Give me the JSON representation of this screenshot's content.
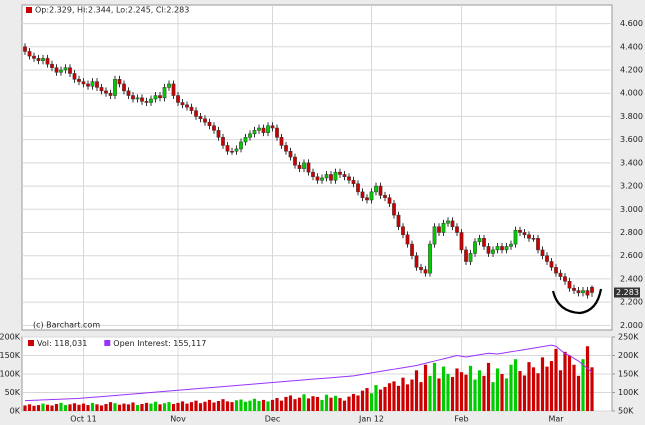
{
  "chart_data": [
    {
      "type": "candlestick",
      "header": "Op:2.329, Hi:2.344, Lo:2.245, Cl:2.283",
      "source": "(c) Barchart.com",
      "up_color": "#00cc00",
      "down_color": "#cc0000",
      "ylim": [
        1.96,
        4.76
      ],
      "yticks": [
        {
          "value": 2.0,
          "label": "2.000"
        },
        {
          "value": 2.2,
          "label": "2.200"
        },
        {
          "value": 2.4,
          "label": "2.400"
        },
        {
          "value": 2.6,
          "label": "2.600"
        },
        {
          "value": 2.8,
          "label": "2.800"
        },
        {
          "value": 3.0,
          "label": "3.000"
        },
        {
          "value": 3.2,
          "label": "3.200"
        },
        {
          "value": 3.4,
          "label": "3.400"
        },
        {
          "value": 3.6,
          "label": "3.600"
        },
        {
          "value": 3.8,
          "label": "3.800"
        },
        {
          "value": 4.0,
          "label": "4.000"
        },
        {
          "value": 4.2,
          "label": "4.200"
        },
        {
          "value": 4.4,
          "label": "4.400"
        },
        {
          "value": 4.6,
          "label": "4.600"
        }
      ],
      "grid": true,
      "open": [
        4.4,
        4.36,
        4.32,
        4.3,
        4.28,
        4.3,
        4.25,
        4.22,
        4.18,
        4.2,
        4.22,
        4.17,
        4.12,
        4.1,
        4.08,
        4.06,
        4.1,
        4.05,
        4.02,
        4.0,
        3.98,
        4.12,
        4.08,
        4.02,
        3.98,
        3.95,
        3.96,
        3.93,
        3.92,
        3.95,
        3.98,
        3.96,
        4.05,
        4.08,
        3.98,
        3.92,
        3.9,
        3.88,
        3.85,
        3.8,
        3.78,
        3.75,
        3.72,
        3.68,
        3.62,
        3.55,
        3.5,
        3.5,
        3.52,
        3.58,
        3.62,
        3.65,
        3.68,
        3.7,
        3.66,
        3.72,
        3.7,
        3.62,
        3.55,
        3.5,
        3.45,
        3.38,
        3.35,
        3.4,
        3.32,
        3.28,
        3.25,
        3.27,
        3.3,
        3.25,
        3.32,
        3.3,
        3.28,
        3.25,
        3.22,
        3.15,
        3.1,
        3.08,
        3.15,
        3.2,
        3.12,
        3.1,
        3.05,
        2.95,
        2.85,
        2.78,
        2.7,
        2.6,
        2.5,
        2.48,
        2.45,
        2.7,
        2.85,
        2.8,
        2.88,
        2.9,
        2.85,
        2.8,
        2.65,
        2.55,
        2.62,
        2.72,
        2.75,
        2.68,
        2.62,
        2.65,
        2.68,
        2.65,
        2.68,
        2.7,
        2.82,
        2.8,
        2.78,
        2.75,
        2.75,
        2.65,
        2.6,
        2.55,
        2.5,
        2.45,
        2.42,
        2.38,
        2.32,
        2.3,
        2.28,
        2.3,
        2.329
      ],
      "high": [
        4.43,
        4.39,
        4.35,
        4.33,
        4.33,
        4.33,
        4.28,
        4.25,
        4.23,
        4.25,
        4.25,
        4.2,
        4.15,
        4.13,
        4.11,
        4.13,
        4.13,
        4.08,
        4.05,
        4.03,
        4.15,
        4.15,
        4.11,
        4.05,
        4.01,
        3.99,
        3.99,
        3.96,
        3.98,
        4.01,
        4.01,
        4.08,
        4.11,
        4.11,
        4.01,
        3.95,
        3.93,
        3.91,
        3.88,
        3.83,
        3.81,
        3.78,
        3.75,
        3.71,
        3.65,
        3.58,
        3.53,
        3.55,
        3.61,
        3.65,
        3.68,
        3.71,
        3.73,
        3.73,
        3.75,
        3.75,
        3.73,
        3.65,
        3.58,
        3.53,
        3.48,
        3.41,
        3.43,
        3.43,
        3.35,
        3.31,
        3.3,
        3.33,
        3.33,
        3.35,
        3.35,
        3.33,
        3.31,
        3.28,
        3.25,
        3.18,
        3.13,
        3.18,
        3.23,
        3.23,
        3.15,
        3.13,
        3.08,
        2.98,
        2.88,
        2.81,
        2.73,
        2.63,
        2.53,
        2.51,
        2.73,
        2.88,
        2.88,
        2.91,
        2.93,
        2.93,
        2.88,
        2.83,
        2.68,
        2.65,
        2.75,
        2.78,
        2.78,
        2.71,
        2.68,
        2.71,
        2.71,
        2.71,
        2.73,
        2.85,
        2.85,
        2.83,
        2.81,
        2.78,
        2.78,
        2.68,
        2.63,
        2.58,
        2.53,
        2.48,
        2.45,
        2.41,
        2.35,
        2.33,
        2.33,
        2.33,
        2.344
      ],
      "low": [
        4.33,
        4.29,
        4.27,
        4.25,
        4.25,
        4.22,
        4.19,
        4.15,
        4.15,
        4.17,
        4.14,
        4.09,
        4.07,
        4.05,
        4.03,
        4.03,
        4.02,
        3.99,
        3.97,
        3.95,
        3.95,
        4.05,
        3.99,
        3.95,
        3.92,
        3.92,
        3.9,
        3.89,
        3.89,
        3.92,
        3.93,
        3.93,
        4.02,
        3.95,
        3.89,
        3.87,
        3.85,
        3.82,
        3.77,
        3.75,
        3.72,
        3.69,
        3.65,
        3.59,
        3.52,
        3.47,
        3.47,
        3.47,
        3.49,
        3.55,
        3.59,
        3.62,
        3.65,
        3.63,
        3.63,
        3.67,
        3.59,
        3.52,
        3.47,
        3.42,
        3.35,
        3.32,
        3.32,
        3.29,
        3.25,
        3.22,
        3.22,
        3.24,
        3.22,
        3.22,
        3.27,
        3.25,
        3.22,
        3.19,
        3.12,
        3.07,
        3.05,
        3.05,
        3.12,
        3.09,
        3.07,
        3.02,
        2.92,
        2.82,
        2.75,
        2.67,
        2.57,
        2.47,
        2.45,
        2.42,
        2.42,
        2.67,
        2.77,
        2.77,
        2.85,
        2.82,
        2.77,
        2.62,
        2.52,
        2.52,
        2.59,
        2.69,
        2.65,
        2.59,
        2.59,
        2.62,
        2.62,
        2.62,
        2.65,
        2.67,
        2.77,
        2.75,
        2.72,
        2.72,
        2.62,
        2.57,
        2.52,
        2.47,
        2.42,
        2.39,
        2.35,
        2.29,
        2.27,
        2.25,
        2.25,
        2.23,
        2.245
      ],
      "close": [
        4.36,
        4.32,
        4.3,
        4.28,
        4.3,
        4.25,
        4.22,
        4.18,
        4.2,
        4.22,
        4.17,
        4.12,
        4.1,
        4.08,
        4.06,
        4.1,
        4.05,
        4.02,
        4.0,
        3.98,
        4.12,
        4.08,
        4.02,
        3.98,
        3.95,
        3.96,
        3.93,
        3.92,
        3.95,
        3.98,
        3.96,
        4.05,
        4.08,
        3.98,
        3.92,
        3.9,
        3.88,
        3.85,
        3.8,
        3.78,
        3.75,
        3.72,
        3.68,
        3.62,
        3.55,
        3.5,
        3.5,
        3.52,
        3.58,
        3.62,
        3.65,
        3.68,
        3.7,
        3.66,
        3.72,
        3.7,
        3.62,
        3.55,
        3.5,
        3.45,
        3.38,
        3.35,
        3.4,
        3.32,
        3.28,
        3.25,
        3.27,
        3.3,
        3.25,
        3.32,
        3.3,
        3.28,
        3.25,
        3.22,
        3.15,
        3.1,
        3.08,
        3.15,
        3.2,
        3.12,
        3.1,
        3.05,
        2.95,
        2.85,
        2.78,
        2.7,
        2.6,
        2.5,
        2.48,
        2.45,
        2.7,
        2.85,
        2.8,
        2.88,
        2.9,
        2.85,
        2.8,
        2.65,
        2.55,
        2.62,
        2.72,
        2.75,
        2.68,
        2.62,
        2.65,
        2.68,
        2.65,
        2.68,
        2.7,
        2.82,
        2.8,
        2.78,
        2.75,
        2.75,
        2.65,
        2.6,
        2.55,
        2.5,
        2.45,
        2.42,
        2.38,
        2.32,
        2.3,
        2.28,
        2.3,
        2.26,
        2.283
      ]
    },
    {
      "type": "volume",
      "categories": [
        null,
        null,
        null,
        null,
        null,
        null,
        null,
        null,
        null,
        null,
        null,
        null,
        null,
        "Oct 11",
        null,
        null,
        null,
        null,
        null,
        null,
        null,
        null,
        null,
        null,
        null,
        null,
        null,
        null,
        null,
        null,
        null,
        null,
        null,
        null,
        "Nov",
        null,
        null,
        null,
        null,
        null,
        null,
        null,
        null,
        null,
        null,
        null,
        null,
        null,
        null,
        null,
        null,
        null,
        null,
        null,
        null,
        "Dec",
        null,
        null,
        null,
        null,
        null,
        null,
        null,
        null,
        null,
        null,
        null,
        null,
        null,
        null,
        null,
        null,
        null,
        null,
        null,
        null,
        null,
        "Jan 12",
        null,
        null,
        null,
        null,
        null,
        null,
        null,
        null,
        null,
        null,
        null,
        null,
        null,
        null,
        null,
        null,
        null,
        null,
        null,
        "Feb",
        null,
        null,
        null,
        null,
        null,
        null,
        null,
        null,
        null,
        null,
        null,
        null,
        null,
        null,
        null,
        null,
        null,
        null,
        null,
        null,
        "Mar",
        null,
        null,
        null,
        null,
        null,
        null,
        null,
        null
      ],
      "series": [
        {
          "name": "Vol: 118,031",
          "color": "#cc0000",
          "values": [
            15000,
            18000,
            14000,
            16000,
            20000,
            17000,
            15000,
            19000,
            22000,
            16000,
            18000,
            21000,
            17000,
            20000,
            16000,
            22000,
            18000,
            15000,
            19000,
            24000,
            21000,
            17000,
            20000,
            18000,
            23000,
            16000,
            19000,
            22000,
            20000,
            25000,
            18000,
            21000,
            24000,
            19000,
            22000,
            26000,
            20000,
            24000,
            28000,
            21000,
            25000,
            30000,
            23000,
            27000,
            32000,
            26000,
            24000,
            29000,
            31000,
            25000,
            28000,
            33000,
            27000,
            30000,
            26000,
            30000,
            35000,
            28000,
            38000,
            42000,
            32000,
            36000,
            45000,
            34000,
            40000,
            38000,
            30000,
            44000,
            36000,
            41000,
            35000,
            28000,
            39000,
            46000,
            42000,
            55000,
            62000,
            48000,
            70000,
            58000,
            65000,
            75000,
            80000,
            68000,
            90000,
            72000,
            85000,
            110000,
            78000,
            125000,
            95000,
            130000,
            88000,
            120000,
            100000,
            92000,
            115000,
            105000,
            98000,
            122000,
            85000,
            110000,
            95000,
            130000,
            78000,
            115000,
            100000,
            88000,
            125000,
            140000,
            108000,
            96000,
            132000,
            118000,
            102000,
            145000,
            120000,
            135000,
            168000,
            110000,
            160000,
            150000,
            125000,
            95000,
            140000,
            175000,
            118031
          ]
        },
        {
          "name": "Open Interest: 155,117",
          "color": "#9933ff",
          "axis": "y2",
          "values": [
            78000,
            78500,
            79000,
            79500,
            80000,
            80500,
            81000,
            81500,
            82000,
            82500,
            83000,
            83500,
            84000,
            85000,
            86000,
            87000,
            88000,
            89000,
            90000,
            91000,
            92000,
            93000,
            94000,
            95000,
            96000,
            97000,
            98000,
            99000,
            100000,
            101000,
            102000,
            103000,
            104000,
            105000,
            106000,
            107000,
            108000,
            109000,
            110000,
            111000,
            112000,
            113000,
            114000,
            115000,
            116000,
            117000,
            118000,
            119000,
            120000,
            121000,
            122000,
            123000,
            124000,
            125000,
            126000,
            127000,
            128000,
            129000,
            130000,
            131000,
            132000,
            133000,
            134000,
            135000,
            136000,
            137000,
            138000,
            139000,
            140000,
            141000,
            142000,
            143000,
            144000,
            145000,
            147000,
            149000,
            151000,
            153000,
            155000,
            157000,
            159000,
            161000,
            163000,
            165000,
            167000,
            169000,
            171000,
            173000,
            176000,
            179000,
            182000,
            185000,
            188000,
            191000,
            194000,
            197000,
            200000,
            198000,
            196000,
            198000,
            200000,
            202000,
            204000,
            206000,
            205000,
            204000,
            206000,
            208000,
            210000,
            212000,
            214000,
            216000,
            218000,
            220000,
            222000,
            224000,
            226000,
            228000,
            225000,
            215000,
            205000,
            200000,
            192000,
            185000,
            175000,
            165000,
            155117
          ]
        }
      ],
      "ylim": [
        0,
        200000
      ],
      "yticks": [
        {
          "value": 0,
          "label": "0K"
        },
        {
          "value": 50000,
          "label": "50K"
        },
        {
          "value": 100000,
          "label": "100K"
        },
        {
          "value": 150000,
          "label": "150K"
        },
        {
          "value": 200000,
          "label": "200K"
        }
      ],
      "y2lim": [
        50000,
        250000
      ],
      "y2ticks": [
        {
          "value": 50000,
          "label": "50K"
        },
        {
          "value": 100000,
          "label": "100K"
        },
        {
          "value": 150000,
          "label": "150K"
        },
        {
          "value": 200000,
          "label": "200K"
        },
        {
          "value": 250000,
          "label": "250K"
        }
      ],
      "grid": true
    }
  ]
}
